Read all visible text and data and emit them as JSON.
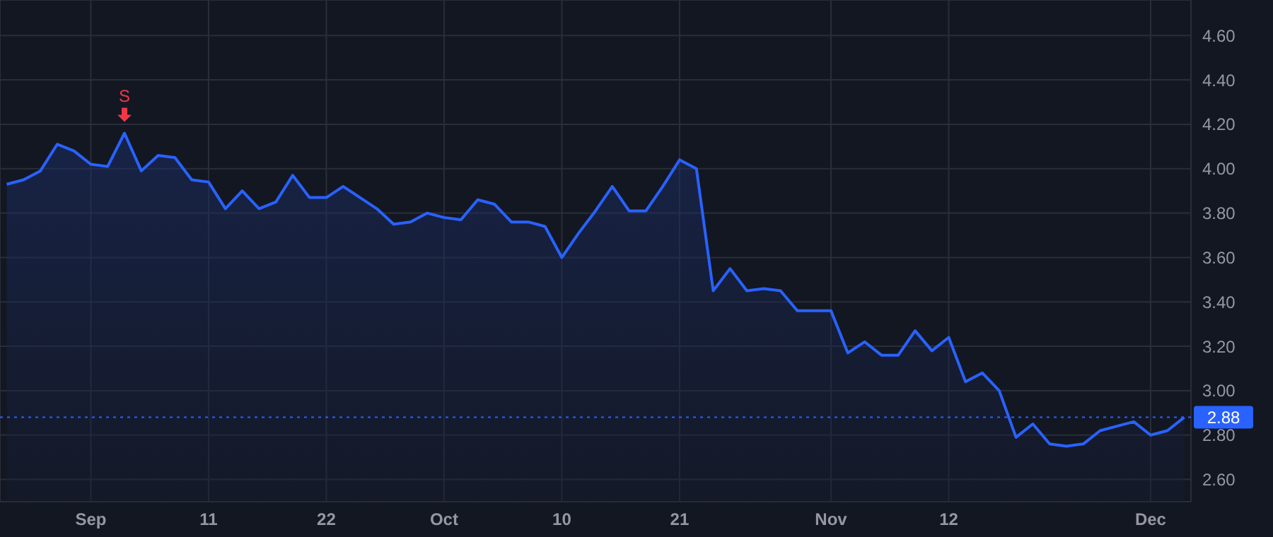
{
  "chart_data": {
    "type": "area",
    "categories": [
      null,
      null,
      null,
      null,
      null,
      "Sep",
      null,
      null,
      null,
      null,
      null,
      null,
      "11",
      null,
      null,
      null,
      null,
      null,
      null,
      "22",
      null,
      null,
      null,
      null,
      null,
      null,
      "Oct",
      null,
      null,
      null,
      null,
      null,
      null,
      "10",
      null,
      null,
      null,
      null,
      null,
      null,
      "21",
      null,
      null,
      null,
      null,
      null,
      null,
      null,
      null,
      "Nov",
      null,
      null,
      null,
      null,
      null,
      null,
      "12",
      null,
      null,
      null,
      null,
      null,
      null,
      null,
      null,
      null,
      null,
      null,
      "Dec",
      null,
      null
    ],
    "series": [
      {
        "color": "#2962ff",
        "values": [
          3.93,
          3.95,
          3.99,
          4.11,
          4.08,
          4.02,
          4.01,
          4.16,
          3.99,
          4.06,
          4.05,
          3.95,
          3.94,
          3.82,
          3.9,
          3.82,
          3.85,
          3.97,
          3.87,
          3.87,
          3.92,
          3.87,
          3.82,
          3.75,
          3.76,
          3.8,
          3.78,
          3.77,
          3.86,
          3.84,
          3.76,
          3.76,
          3.74,
          3.6,
          3.71,
          3.81,
          3.92,
          3.81,
          3.81,
          3.92,
          4.04,
          4.0,
          3.45,
          3.55,
          3.45,
          3.46,
          3.45,
          3.36,
          3.36,
          3.36,
          3.17,
          3.22,
          3.16,
          3.16,
          3.27,
          3.18,
          3.24,
          3.04,
          3.08,
          3.0,
          2.79,
          2.85,
          2.76,
          2.75,
          2.76,
          2.82,
          2.84,
          2.86,
          2.8,
          2.82,
          2.88
        ]
      }
    ],
    "ylim": [
      2.5,
      4.76
    ],
    "yticks": [
      {
        "value": 2.6,
        "label": "2.60"
      },
      {
        "value": 2.8,
        "label": "2.80"
      },
      {
        "value": 3.0,
        "label": "3.00"
      },
      {
        "value": 3.2,
        "label": "3.20"
      },
      {
        "value": 3.4,
        "label": "3.40"
      },
      {
        "value": 3.6,
        "label": "3.60"
      },
      {
        "value": 3.8,
        "label": "3.80"
      },
      {
        "value": 4.0,
        "label": "4.00"
      },
      {
        "value": 4.2,
        "label": "4.20"
      },
      {
        "value": 4.4,
        "label": "4.40"
      },
      {
        "value": 4.6,
        "label": "4.60"
      }
    ],
    "grid": true,
    "marker": "none",
    "line_style": "solid",
    "ref_lines": [
      {
        "axis": "y",
        "value": 2.88,
        "label": "2.88",
        "color": "#2962ff",
        "line_style": "dotted"
      }
    ],
    "annotations": [
      {
        "text": "S",
        "y": 4.16
      }
    ]
  }
}
